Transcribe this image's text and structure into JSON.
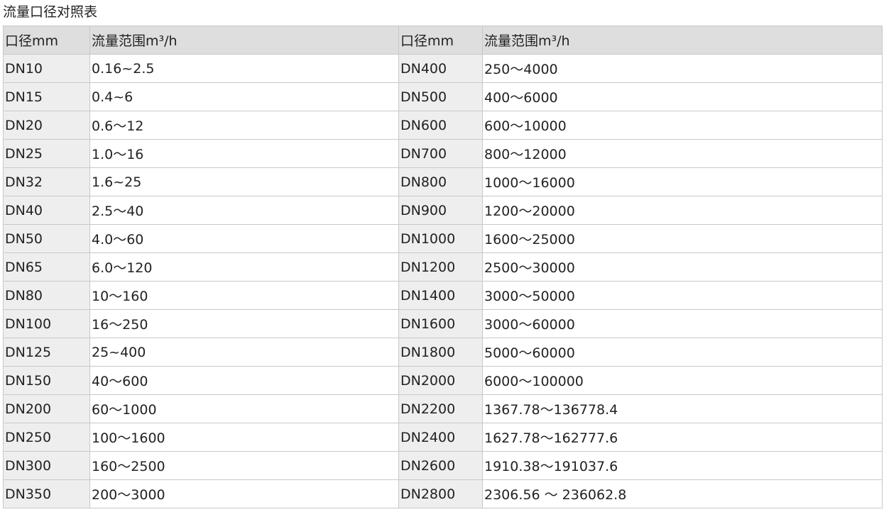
{
  "title": "流量口径对照表",
  "headers": [
    "口径mm",
    "流量范围m³/h",
    "口径mm",
    "流量范围m³/h"
  ],
  "rows": [
    [
      "DN10",
      "0.16~2.5",
      "DN400",
      "250～4000"
    ],
    [
      "DN15",
      "0.4~6",
      "DN500",
      "400～6000"
    ],
    [
      "DN20",
      "0.6～12",
      "DN600",
      "600～10000"
    ],
    [
      "DN25",
      "1.0～16",
      "DN700",
      "800～12000"
    ],
    [
      "DN32",
      "1.6~25",
      "DN800",
      "1000～16000"
    ],
    [
      "DN40",
      "2.5～40",
      "DN900",
      "1200～20000"
    ],
    [
      "DN50",
      "4.0～60",
      "DN1000",
      "1600～25000"
    ],
    [
      "DN65",
      "6.0～120",
      "DN1200",
      "2500～30000"
    ],
    [
      "DN80",
      "10～160",
      "DN1400",
      "3000～50000"
    ],
    [
      "DN100",
      "16～250",
      "DN1600",
      "3000～60000"
    ],
    [
      "DN125",
      "25~400",
      "DN1800",
      "5000～60000"
    ],
    [
      "DN150",
      "40～600",
      "DN2000",
      "6000～100000"
    ],
    [
      "DN200",
      "60～1000",
      "DN2200",
      "1367.78～136778.4"
    ],
    [
      "DN250",
      "100～1600",
      "DN2400",
      "1627.78～162777.6"
    ],
    [
      "DN300",
      "160～2500",
      "DN2600",
      "1910.38～191037.6"
    ],
    [
      "DN350",
      "200～3000",
      "DN2800",
      "2306.56 ～ 236062.8"
    ]
  ]
}
